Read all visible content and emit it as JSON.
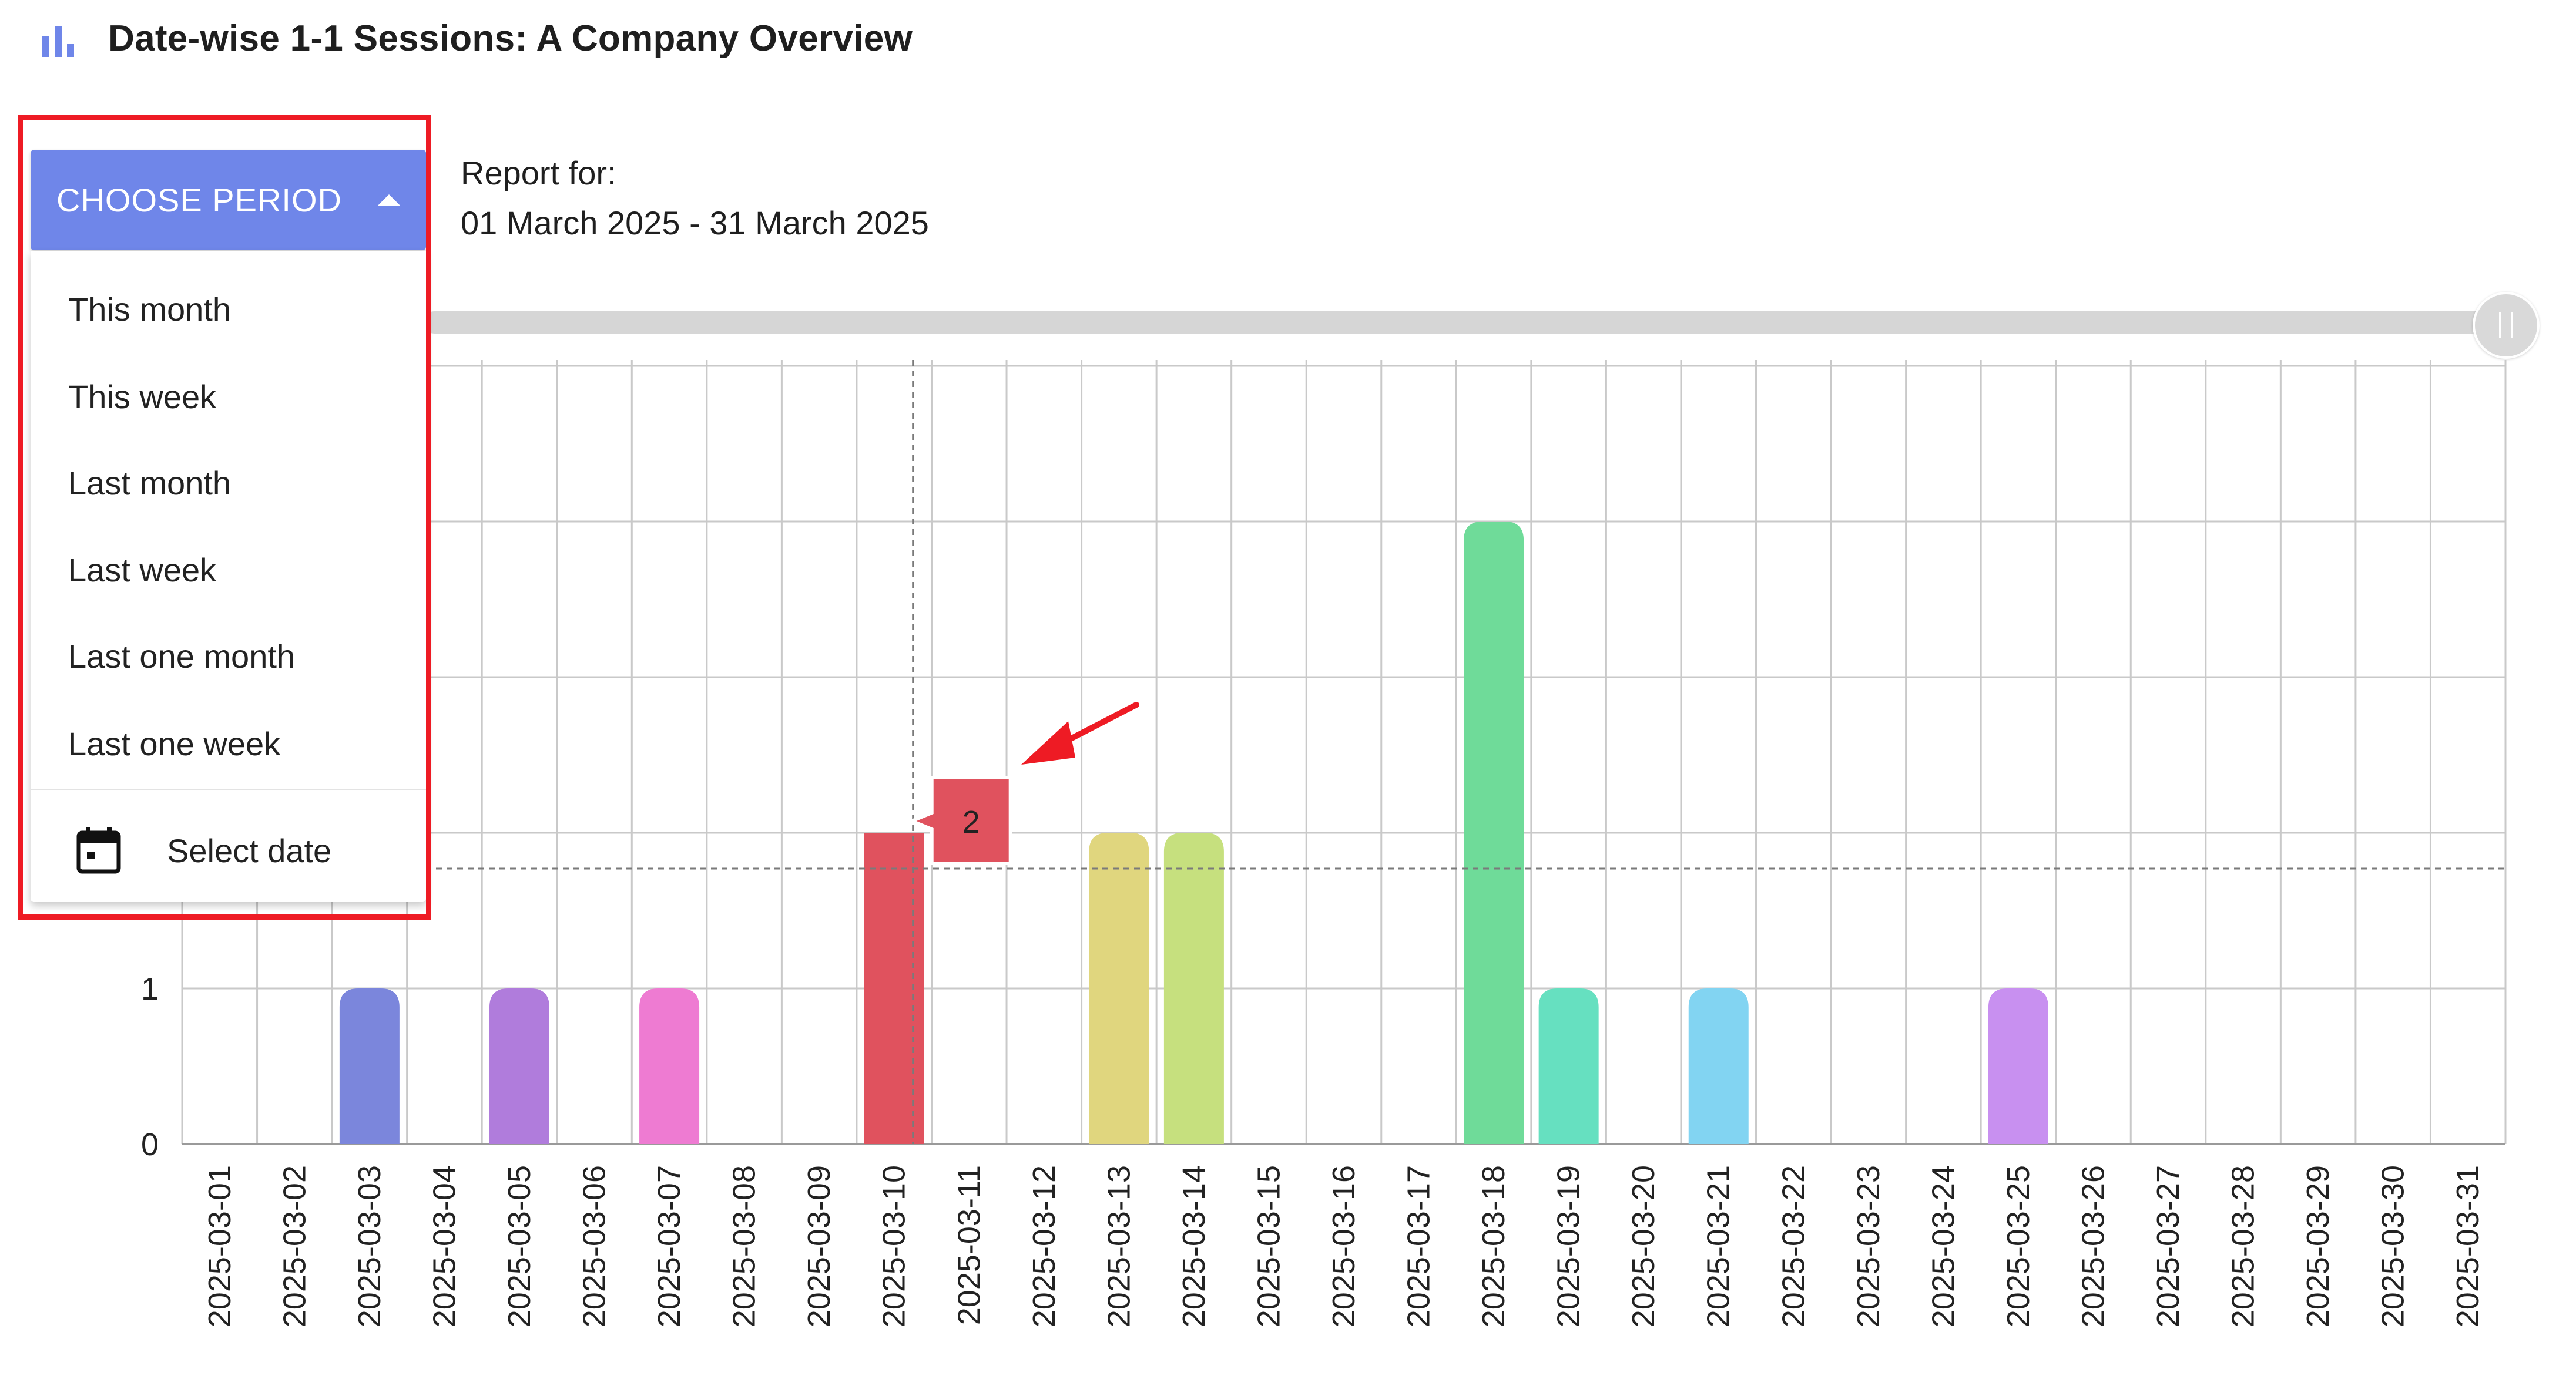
{
  "header": {
    "title": "Date-wise 1-1 Sessions: A Company Overview",
    "icon": "bar-chart-icon"
  },
  "period_button": {
    "label": "CHOOSE PERIOD",
    "icon": "caret-up-icon"
  },
  "menu": {
    "items": [
      "This month",
      "This week",
      "Last month",
      "Last week",
      "Last one month",
      "Last one week"
    ],
    "select_date": {
      "label": "Select date",
      "icon": "calendar-icon"
    }
  },
  "report": {
    "label": "Report for:",
    "range": "01 March 2025 - 31 March 2025"
  },
  "tooltip": {
    "value": "2"
  },
  "colors": {
    "accent": "#6f86e9",
    "highlight": "#ee1b24",
    "tooltip": "#e0525e"
  },
  "chart_data": {
    "type": "bar",
    "categories": [
      "2025-03-01",
      "2025-03-02",
      "2025-03-03",
      "2025-03-04",
      "2025-03-05",
      "2025-03-06",
      "2025-03-07",
      "2025-03-08",
      "2025-03-09",
      "2025-03-10",
      "2025-03-11",
      "2025-03-12",
      "2025-03-13",
      "2025-03-14",
      "2025-03-15",
      "2025-03-16",
      "2025-03-17",
      "2025-03-18",
      "2025-03-19",
      "2025-03-20",
      "2025-03-21",
      "2025-03-22",
      "2025-03-23",
      "2025-03-24",
      "2025-03-25",
      "2025-03-26",
      "2025-03-27",
      "2025-03-28",
      "2025-03-29",
      "2025-03-30",
      "2025-03-31"
    ],
    "values": [
      0,
      0,
      1,
      0,
      1,
      0,
      1,
      0,
      0,
      2,
      0,
      0,
      2,
      2,
      0,
      0,
      0,
      4,
      1,
      0,
      1,
      0,
      0,
      0,
      1,
      0,
      0,
      0,
      0,
      0,
      0
    ],
    "colors": [
      "#7b86dc",
      "#7b86dc",
      "#7b86dc",
      "#7b86dc",
      "#b07cdc",
      "#b07cdc",
      "#ee7bd2",
      "#ee7bd2",
      "#e0525e",
      "#e0525e",
      "#e0525e",
      "#e0525e",
      "#e0d67e",
      "#c6e07e",
      "#6fdb99",
      "#6fdb99",
      "#6fdb99",
      "#6fdb99",
      "#66e0c0",
      "#66e0c0",
      "#82d4f2",
      "#82d4f2",
      "#c890f0",
      "#c890f0",
      "#c890f0",
      "#c890f0",
      "#c890f0",
      "#c890f0",
      "#c890f0",
      "#c890f0",
      "#c890f0"
    ],
    "yticks_visible": [
      0,
      1
    ],
    "ylim": [
      0,
      5
    ],
    "grid": true,
    "hover_index": 9,
    "crosshair_value": 1.77
  }
}
